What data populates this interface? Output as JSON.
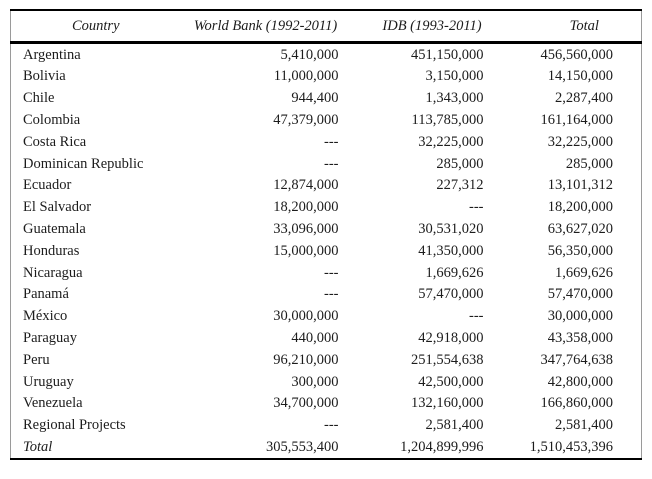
{
  "table": {
    "columns": [
      {
        "key": "country",
        "label": "Country"
      },
      {
        "key": "world_bank",
        "label": "World Bank (1992-2011)"
      },
      {
        "key": "idb",
        "label": "IDB (1993-2011)"
      },
      {
        "key": "total",
        "label": "Total"
      }
    ],
    "na_marker": "---",
    "rows": [
      {
        "country": "Argentina",
        "world_bank": "5,410,000",
        "idb": "451,150,000",
        "total": "456,560,000"
      },
      {
        "country": "Bolivia",
        "world_bank": "11,000,000",
        "idb": "3,150,000",
        "total": "14,150,000"
      },
      {
        "country": "Chile",
        "world_bank": "944,400",
        "idb": "1,343,000",
        "total": "2,287,400"
      },
      {
        "country": "Colombia",
        "world_bank": "47,379,000",
        "idb": "113,785,000",
        "total": "161,164,000"
      },
      {
        "country": "Costa Rica",
        "world_bank": "---",
        "idb": "32,225,000",
        "total": "32,225,000"
      },
      {
        "country": "Dominican Republic",
        "world_bank": "---",
        "idb": "285,000",
        "total": "285,000"
      },
      {
        "country": "Ecuador",
        "world_bank": "12,874,000",
        "idb": "227,312",
        "total": "13,101,312"
      },
      {
        "country": "El Salvador",
        "world_bank": "18,200,000",
        "idb": "---",
        "total": "18,200,000"
      },
      {
        "country": "Guatemala",
        "world_bank": "33,096,000",
        "idb": "30,531,020",
        "total": "63,627,020"
      },
      {
        "country": "Honduras",
        "world_bank": "15,000,000",
        "idb": "41,350,000",
        "total": "56,350,000"
      },
      {
        "country": "Nicaragua",
        "world_bank": "---",
        "idb": "1,669,626",
        "total": "1,669,626"
      },
      {
        "country": "Panamá",
        "world_bank": "---",
        "idb": "57,470,000",
        "total": "57,470,000"
      },
      {
        "country": "México",
        "world_bank": "30,000,000",
        "idb": "---",
        "total": "30,000,000"
      },
      {
        "country": "Paraguay",
        "world_bank": "440,000",
        "idb": "42,918,000",
        "total": "43,358,000"
      },
      {
        "country": "Peru",
        "world_bank": "96,210,000",
        "idb": "251,554,638",
        "total": "347,764,638"
      },
      {
        "country": "Uruguay",
        "world_bank": "300,000",
        "idb": "42,500,000",
        "total": "42,800,000"
      },
      {
        "country": "Venezuela",
        "world_bank": "34,700,000",
        "idb": "132,160,000",
        "total": "166,860,000"
      },
      {
        "country": "Regional Projects",
        "world_bank": "---",
        "idb": "2,581,400",
        "total": "2,581,400"
      }
    ],
    "footer": {
      "country": "Total",
      "world_bank": "305,553,400",
      "idb": "1,204,899,996",
      "total": "1,510,453,396"
    }
  }
}
